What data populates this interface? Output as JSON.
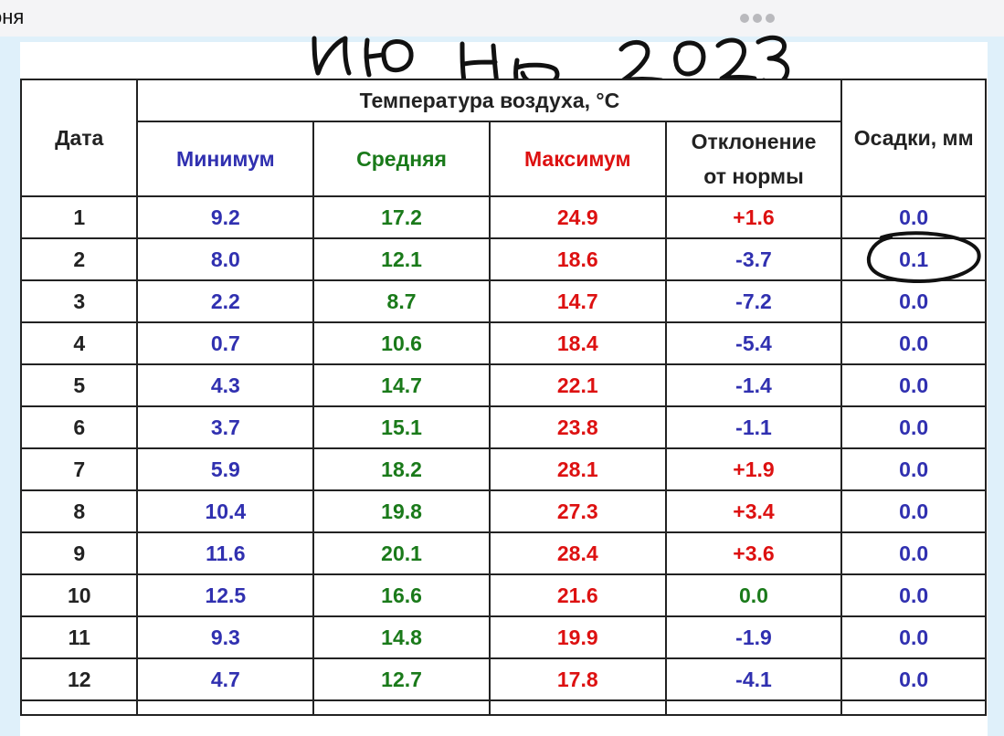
{
  "topbar": {
    "title": "оня",
    "menu_icon": "more-dots-icon"
  },
  "handwriting": {
    "text": "июнь 2023",
    "color": "#111111"
  },
  "table": {
    "header": {
      "date": "Дата",
      "temperature_group": "Температура воздуха, °С",
      "min": "Минимум",
      "avg": "Средняя",
      "max": "Максимум",
      "deviation_line1": "Отклонение",
      "deviation_line2": "от нормы",
      "precip": "Осадки, мм"
    },
    "colors": {
      "min": "#3030b0",
      "avg": "#1a7a1a",
      "max": "#dd1111",
      "deviation_positive": "#dd1111",
      "deviation_negative": "#3030b0",
      "deviation_zero": "#1a7a1a",
      "precip": "#3030b0"
    },
    "rows": [
      {
        "date": "1",
        "min": "9.2",
        "avg": "17.2",
        "max": "24.9",
        "dev": "+1.6",
        "dev_sign": "pos",
        "precip": "0.0"
      },
      {
        "date": "2",
        "min": "8.0",
        "avg": "12.1",
        "max": "18.6",
        "dev": "-3.7",
        "dev_sign": "neg",
        "precip": "0.1"
      },
      {
        "date": "3",
        "min": "2.2",
        "avg": "8.7",
        "max": "14.7",
        "dev": "-7.2",
        "dev_sign": "neg",
        "precip": "0.0"
      },
      {
        "date": "4",
        "min": "0.7",
        "avg": "10.6",
        "max": "18.4",
        "dev": "-5.4",
        "dev_sign": "neg",
        "precip": "0.0"
      },
      {
        "date": "5",
        "min": "4.3",
        "avg": "14.7",
        "max": "22.1",
        "dev": "-1.4",
        "dev_sign": "neg",
        "precip": "0.0"
      },
      {
        "date": "6",
        "min": "3.7",
        "avg": "15.1",
        "max": "23.8",
        "dev": "-1.1",
        "dev_sign": "neg",
        "precip": "0.0"
      },
      {
        "date": "7",
        "min": "5.9",
        "avg": "18.2",
        "max": "28.1",
        "dev": "+1.9",
        "dev_sign": "pos",
        "precip": "0.0"
      },
      {
        "date": "8",
        "min": "10.4",
        "avg": "19.8",
        "max": "27.3",
        "dev": "+3.4",
        "dev_sign": "pos",
        "precip": "0.0"
      },
      {
        "date": "9",
        "min": "11.6",
        "avg": "20.1",
        "max": "28.4",
        "dev": "+3.6",
        "dev_sign": "pos",
        "precip": "0.0"
      },
      {
        "date": "10",
        "min": "12.5",
        "avg": "16.6",
        "max": "21.6",
        "dev": "0.0",
        "dev_sign": "zero",
        "precip": "0.0"
      },
      {
        "date": "11",
        "min": "9.3",
        "avg": "14.8",
        "max": "19.9",
        "dev": "-1.9",
        "dev_sign": "neg",
        "precip": "0.0"
      },
      {
        "date": "12",
        "min": "4.7",
        "avg": "12.7",
        "max": "17.8",
        "dev": "-4.1",
        "dev_sign": "neg",
        "precip": "0.0"
      }
    ]
  },
  "annotations": {
    "circled_cell": "0.1",
    "circle_icon": "hand-drawn-circle-icon"
  }
}
